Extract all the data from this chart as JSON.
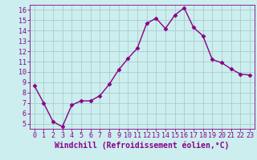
{
  "x": [
    0,
    1,
    2,
    3,
    4,
    5,
    6,
    7,
    8,
    9,
    10,
    11,
    12,
    13,
    14,
    15,
    16,
    17,
    18,
    19,
    20,
    21,
    22,
    23
  ],
  "y": [
    8.7,
    7.0,
    5.2,
    4.7,
    6.8,
    7.2,
    7.2,
    7.7,
    8.8,
    10.2,
    11.3,
    12.3,
    14.7,
    15.2,
    14.2,
    15.5,
    16.2,
    14.3,
    13.5,
    11.2,
    10.9,
    10.3,
    9.8,
    9.7
  ],
  "line_color": "#880088",
  "marker": "D",
  "marker_size": 2.5,
  "bg_color": "#cceeee",
  "grid_color": "#aacccc",
  "xlabel": "Windchill (Refroidissement éolien,°C)",
  "ylabel": "",
  "ylim": [
    4.5,
    16.5
  ],
  "xlim": [
    -0.5,
    23.5
  ],
  "yticks": [
    5,
    6,
    7,
    8,
    9,
    10,
    11,
    12,
    13,
    14,
    15,
    16
  ],
  "xticks": [
    0,
    1,
    2,
    3,
    4,
    5,
    6,
    7,
    8,
    9,
    10,
    11,
    12,
    13,
    14,
    15,
    16,
    17,
    18,
    19,
    20,
    21,
    22,
    23
  ],
  "tick_color": "#880088",
  "xlabel_fontsize": 7.0,
  "tick_fontsize": 6.0,
  "line_width": 1.0,
  "spine_color": "#880088",
  "font_family": "monospace"
}
